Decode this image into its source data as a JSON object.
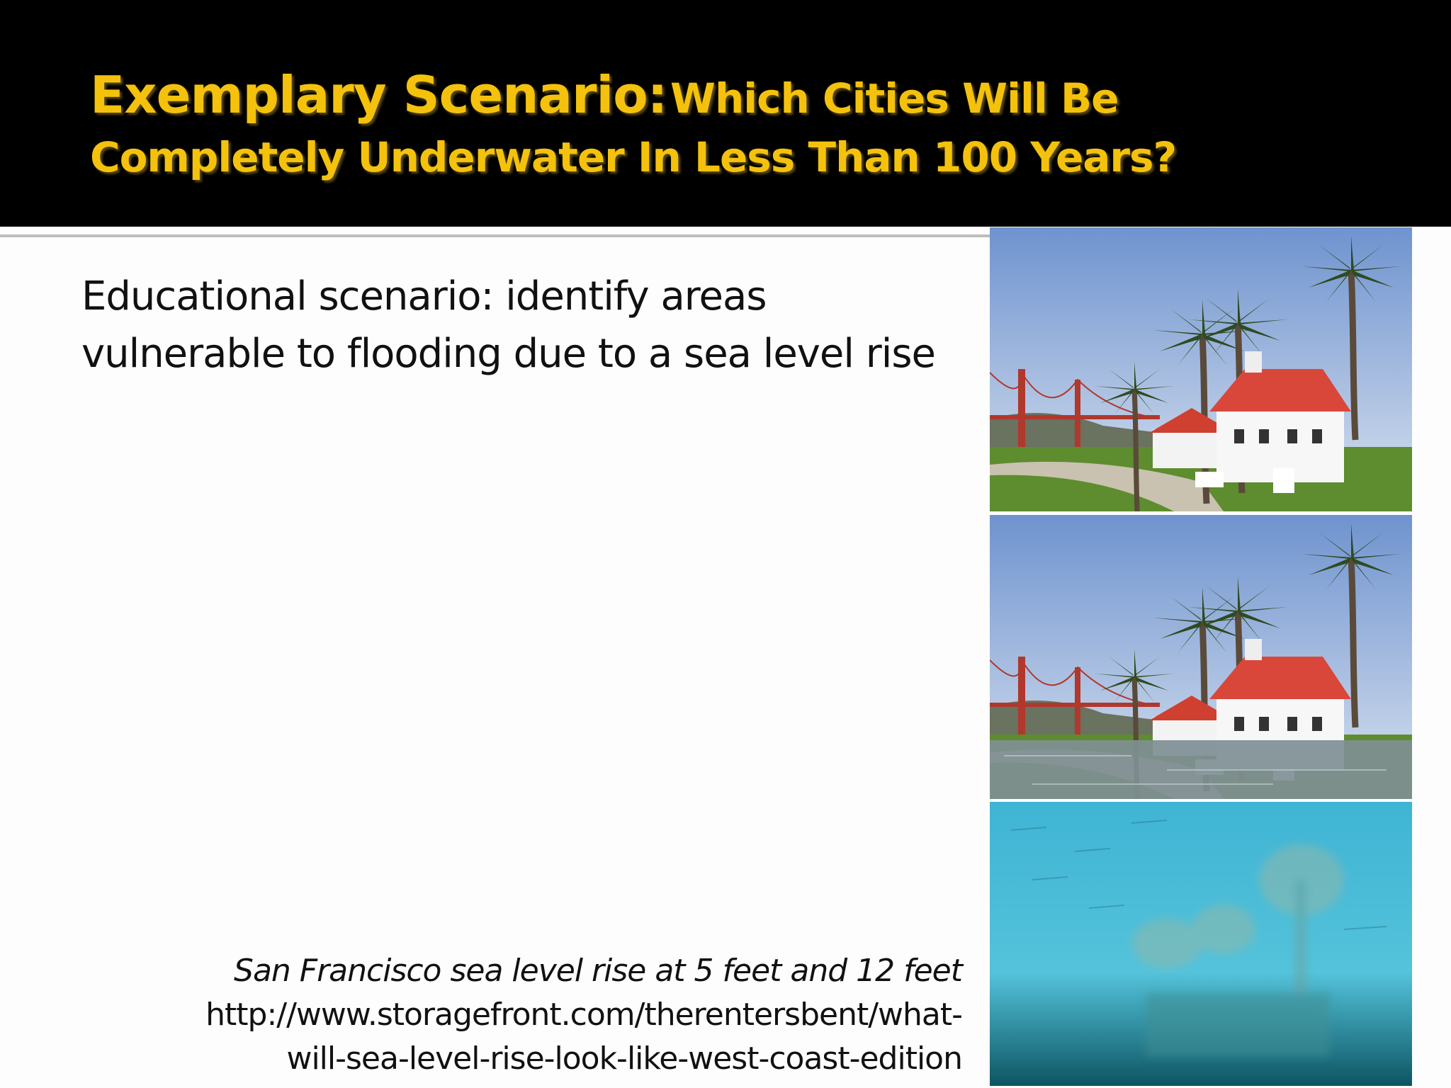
{
  "title": {
    "lead": "Exemplary Scenario:",
    "rest_line1": "Which Cities Will Be",
    "line2": "Completely Underwater In Less Than 100 Years?"
  },
  "body": {
    "lines": [
      "Educational scenario: identify areas",
      "vulnerable to flooding due to a sea level rise"
    ]
  },
  "caption": {
    "text": "San Francisco sea level rise at 5 feet and 12 feet",
    "url_lines": [
      "http://www.storagefront.com/therentersbent/what-",
      "will-sea-level-rise-look-like-west-coast-edition"
    ]
  }
}
